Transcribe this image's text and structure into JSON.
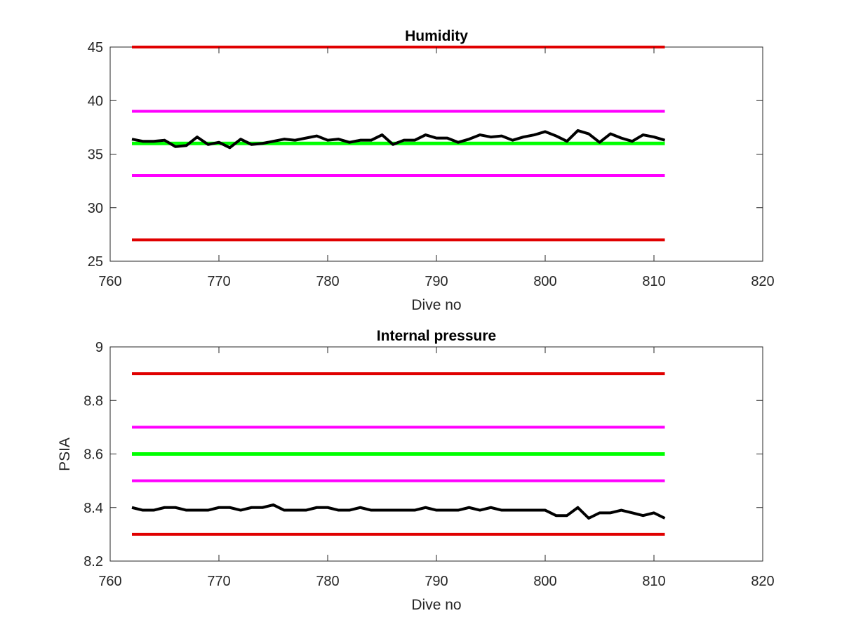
{
  "chart_data": [
    {
      "type": "line",
      "title": "Humidity",
      "xlabel": "Dive no",
      "ylabel": "",
      "xlim": [
        760,
        820
      ],
      "ylim": [
        25,
        45
      ],
      "xticks": [
        760,
        770,
        780,
        790,
        800,
        810,
        820
      ],
      "yticks": [
        25,
        30,
        35,
        40,
        45
      ],
      "grid": false,
      "series": [
        {
          "x": [
            762,
            811
          ],
          "values": [
            45,
            45
          ],
          "color": "#e00000",
          "width": 4
        },
        {
          "x": [
            762,
            811
          ],
          "values": [
            39,
            39
          ],
          "color": "#ff00ff",
          "width": 4
        },
        {
          "x": [
            762,
            811
          ],
          "values": [
            36,
            36
          ],
          "color": "#00ff00",
          "width": 5
        },
        {
          "x": [
            762,
            811
          ],
          "values": [
            33,
            33
          ],
          "color": "#ff00ff",
          "width": 4
        },
        {
          "x": [
            762,
            811
          ],
          "values": [
            27,
            27
          ],
          "color": "#e00000",
          "width": 4
        },
        {
          "x": [
            762,
            763,
            764,
            765,
            766,
            767,
            768,
            769,
            770,
            771,
            772,
            773,
            774,
            775,
            776,
            777,
            778,
            779,
            780,
            781,
            782,
            783,
            784,
            785,
            786,
            787,
            788,
            789,
            790,
            791,
            792,
            793,
            794,
            795,
            796,
            797,
            798,
            799,
            800,
            801,
            802,
            803,
            804,
            805,
            806,
            807,
            808,
            809,
            810,
            811
          ],
          "values": [
            36.4,
            36.2,
            36.2,
            36.3,
            35.7,
            35.8,
            36.6,
            35.9,
            36.1,
            35.6,
            36.4,
            35.9,
            36.0,
            36.2,
            36.4,
            36.3,
            36.5,
            36.7,
            36.3,
            36.4,
            36.1,
            36.3,
            36.3,
            36.8,
            35.9,
            36.3,
            36.3,
            36.8,
            36.5,
            36.5,
            36.1,
            36.4,
            36.8,
            36.6,
            36.7,
            36.3,
            36.6,
            36.8,
            37.1,
            36.7,
            36.2,
            37.2,
            36.9,
            36.1,
            36.9,
            36.5,
            36.2,
            36.8,
            36.6,
            36.3
          ],
          "color": "#000000",
          "width": 4
        }
      ]
    },
    {
      "type": "line",
      "title": "Internal pressure",
      "xlabel": "Dive no",
      "ylabel": "PSIA",
      "xlim": [
        760,
        820
      ],
      "ylim": [
        8.2,
        9.0
      ],
      "xticks": [
        760,
        770,
        780,
        790,
        800,
        810,
        820
      ],
      "yticks": [
        8.2,
        8.4,
        8.6,
        8.8,
        9
      ],
      "grid": false,
      "series": [
        {
          "x": [
            762,
            811
          ],
          "values": [
            8.9,
            8.9
          ],
          "color": "#e00000",
          "width": 4
        },
        {
          "x": [
            762,
            811
          ],
          "values": [
            8.7,
            8.7
          ],
          "color": "#ff00ff",
          "width": 4
        },
        {
          "x": [
            762,
            811
          ],
          "values": [
            8.6,
            8.6
          ],
          "color": "#00ff00",
          "width": 5
        },
        {
          "x": [
            762,
            811
          ],
          "values": [
            8.5,
            8.5
          ],
          "color": "#ff00ff",
          "width": 4
        },
        {
          "x": [
            762,
            811
          ],
          "values": [
            8.3,
            8.3
          ],
          "color": "#e00000",
          "width": 4
        },
        {
          "x": [
            762,
            763,
            764,
            765,
            766,
            767,
            768,
            769,
            770,
            771,
            772,
            773,
            774,
            775,
            776,
            777,
            778,
            779,
            780,
            781,
            782,
            783,
            784,
            785,
            786,
            787,
            788,
            789,
            790,
            791,
            792,
            793,
            794,
            795,
            796,
            797,
            798,
            799,
            800,
            801,
            802,
            803,
            804,
            805,
            806,
            807,
            808,
            809,
            810,
            811
          ],
          "values": [
            8.4,
            8.39,
            8.39,
            8.4,
            8.4,
            8.39,
            8.39,
            8.39,
            8.4,
            8.4,
            8.39,
            8.4,
            8.4,
            8.41,
            8.39,
            8.39,
            8.39,
            8.4,
            8.4,
            8.39,
            8.39,
            8.4,
            8.39,
            8.39,
            8.39,
            8.39,
            8.39,
            8.4,
            8.39,
            8.39,
            8.39,
            8.4,
            8.39,
            8.4,
            8.39,
            8.39,
            8.39,
            8.39,
            8.39,
            8.37,
            8.37,
            8.4,
            8.36,
            8.38,
            8.38,
            8.39,
            8.38,
            8.37,
            8.38,
            8.36
          ],
          "color": "#000000",
          "width": 4
        }
      ]
    }
  ]
}
